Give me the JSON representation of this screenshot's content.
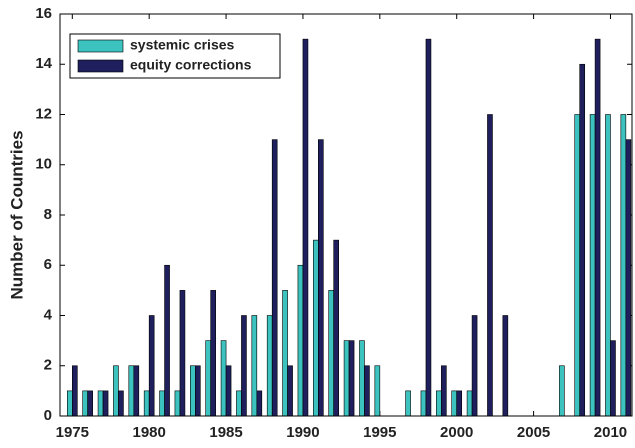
{
  "chart_data": {
    "type": "bar",
    "y_label": "Number of Countries",
    "x": [
      1975,
      1976,
      1977,
      1978,
      1979,
      1980,
      1981,
      1982,
      1983,
      1984,
      1985,
      1986,
      1987,
      1988,
      1989,
      1990,
      1991,
      1992,
      1993,
      1994,
      1995,
      1996,
      1997,
      1998,
      1999,
      2000,
      2001,
      2002,
      2003,
      2004,
      2005,
      2006,
      2007,
      2008,
      2009,
      2010,
      2011
    ],
    "series": [
      {
        "name": "systemic crises",
        "color": "#3cc3bf",
        "values": [
          1,
          1,
          1,
          2,
          2,
          1,
          1,
          1,
          2,
          3,
          3,
          1,
          4,
          4,
          5,
          6,
          7,
          5,
          3,
          3,
          2,
          0,
          1,
          1,
          1,
          1,
          1,
          0,
          0,
          0,
          0,
          0,
          2,
          12,
          12,
          12,
          12
        ]
      },
      {
        "name": "equity corrections",
        "color": "#1e1f5c",
        "values": [
          2,
          1,
          1,
          1,
          2,
          4,
          6,
          5,
          2,
          5,
          2,
          4,
          1,
          11,
          2,
          15,
          11,
          7,
          3,
          2,
          0,
          0,
          0,
          15,
          2,
          1,
          4,
          12,
          4,
          0,
          0,
          0,
          0,
          14,
          15,
          3,
          11
        ]
      }
    ],
    "xlim": [
      1974.2,
      2011.4
    ],
    "xticks": [
      1975,
      1980,
      1985,
      1990,
      1995,
      2000,
      2005,
      2010
    ],
    "ylim": [
      0,
      16
    ],
    "yticks": [
      0,
      2,
      4,
      6,
      8,
      10,
      12,
      14,
      16
    ],
    "legend": "upper left"
  }
}
